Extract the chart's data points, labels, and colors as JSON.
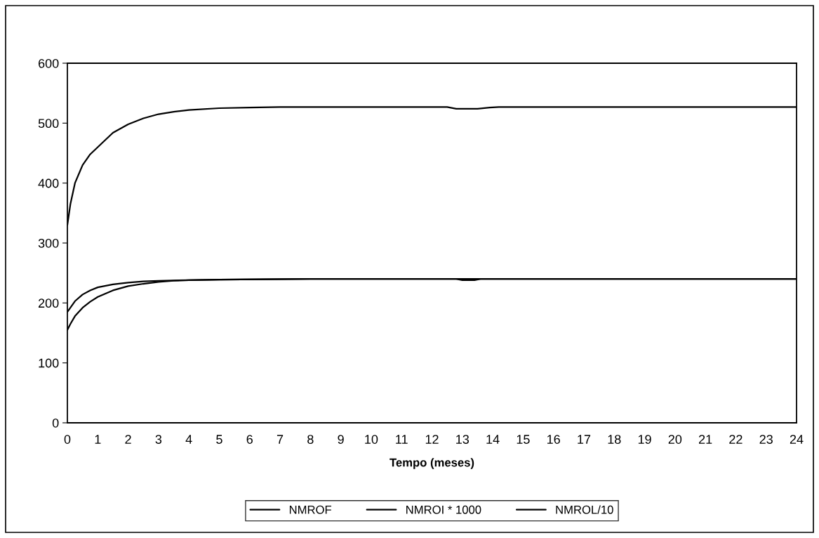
{
  "chart_data": {
    "type": "line",
    "xlabel": "Tempo (meses)",
    "xlim": [
      0,
      24
    ],
    "xticks": [
      0,
      1,
      2,
      3,
      4,
      5,
      6,
      7,
      8,
      9,
      10,
      11,
      12,
      13,
      14,
      15,
      16,
      17,
      18,
      19,
      20,
      21,
      22,
      23,
      24
    ],
    "ylim": [
      0,
      600
    ],
    "yticks": [
      0,
      100,
      200,
      300,
      400,
      500,
      600
    ],
    "grid": false,
    "legend": "bottom",
    "marker": "none",
    "line_style": "solid",
    "series": [
      {
        "name": "NMROF",
        "color": "#000000",
        "x": [
          0,
          0.1,
          0.25,
          0.5,
          0.75,
          1,
          1.5,
          2,
          2.5,
          3,
          3.5,
          4,
          5,
          6,
          7,
          10,
          12.5,
          12.8,
          13.5,
          13.9,
          14.2,
          18,
          24
        ],
        "values": [
          330,
          365,
          400,
          430,
          448,
          460,
          484,
          498,
          508,
          515,
          519,
          522,
          525,
          526,
          527,
          527,
          527,
          524,
          524,
          526,
          527,
          527,
          527
        ]
      },
      {
        "name": "NMROI * 1000",
        "color": "#000000",
        "x": [
          0,
          0.25,
          0.5,
          0.75,
          1,
          1.5,
          2,
          2.5,
          3,
          4,
          5,
          8,
          12.8,
          13,
          13.4,
          13.6,
          24
        ],
        "values": [
          185,
          203,
          214,
          221,
          226,
          231,
          234,
          236,
          237,
          238,
          239,
          240,
          240,
          238,
          238,
          240,
          240
        ]
      },
      {
        "name": "NMROL/10",
        "color": "#000000",
        "x": [
          0,
          0.1,
          0.25,
          0.5,
          0.75,
          1,
          1.5,
          2,
          2.5,
          3,
          3.5,
          4,
          5,
          8,
          24
        ],
        "values": [
          155,
          165,
          178,
          192,
          202,
          210,
          221,
          228,
          232,
          235,
          237,
          238,
          239,
          240,
          240
        ]
      }
    ]
  }
}
